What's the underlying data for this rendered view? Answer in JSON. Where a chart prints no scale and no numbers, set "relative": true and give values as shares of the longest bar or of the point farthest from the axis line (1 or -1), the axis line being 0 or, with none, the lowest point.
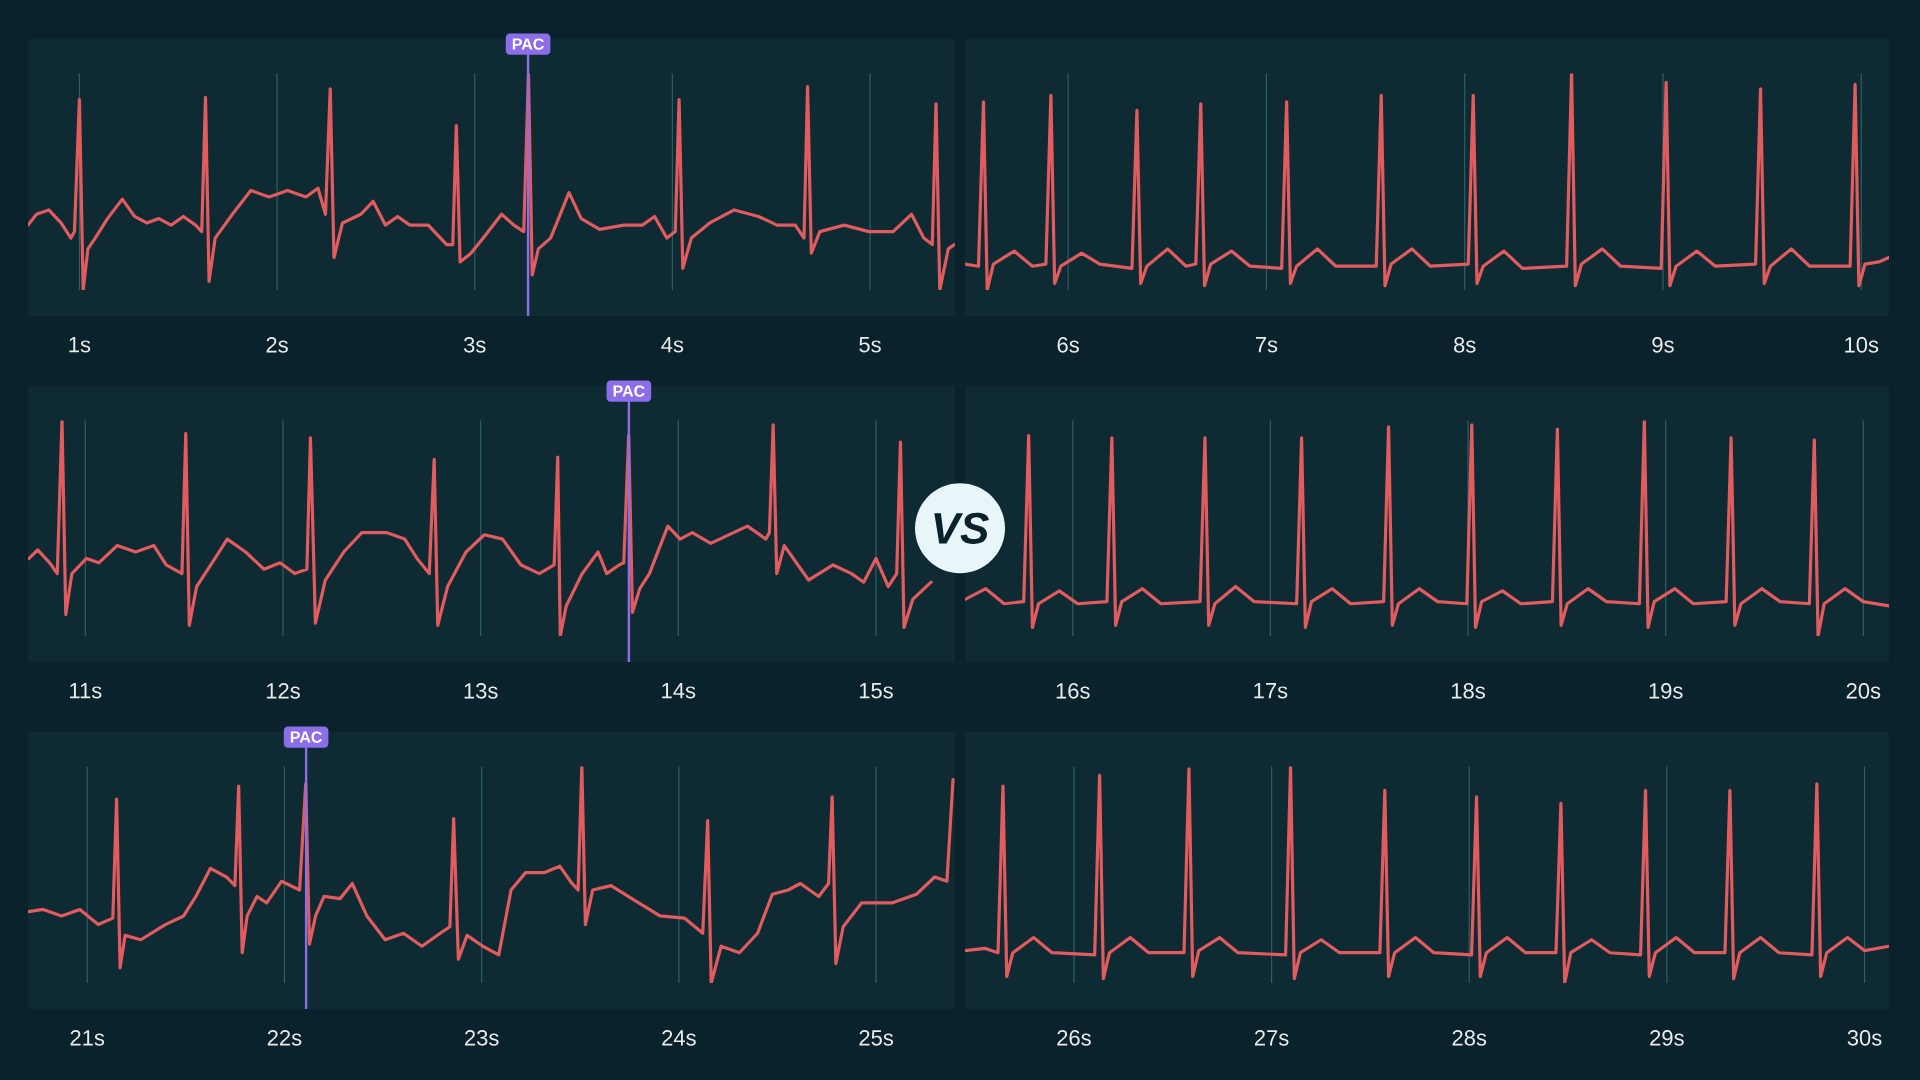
{
  "chart_data": [
    {
      "type": "line",
      "relative": true,
      "color": "#e25b5e",
      "grid": "x",
      "xlim": [
        0.74,
        5.43
      ],
      "xticks": [
        {
          "value": 1,
          "label": "1s"
        },
        {
          "value": 2,
          "label": "2s"
        },
        {
          "value": 3,
          "label": "3s"
        },
        {
          "value": 4,
          "label": "4s"
        },
        {
          "value": 5,
          "label": "5s"
        }
      ],
      "ref_lines": [
        {
          "axis": "x",
          "value": 3.27,
          "label": "PAC",
          "color": "#8b6ee8"
        }
      ],
      "x": [
        0.74,
        0.783,
        0.845,
        0.907,
        0.957,
        0.975,
        1.0,
        1.019,
        1.043,
        1.08,
        1.142,
        1.217,
        1.279,
        1.341,
        1.402,
        1.464,
        1.526,
        1.588,
        1.619,
        1.638,
        1.656,
        1.687,
        1.774,
        1.867,
        1.96,
        2.053,
        2.146,
        2.207,
        2.245,
        2.269,
        2.288,
        2.331,
        2.424,
        2.486,
        2.548,
        2.61,
        2.672,
        2.765,
        2.858,
        2.889,
        2.907,
        2.926,
        2.981,
        3.043,
        3.136,
        3.198,
        3.248,
        3.272,
        3.291,
        3.322,
        3.384,
        3.477,
        3.539,
        3.632,
        3.755,
        3.848,
        3.91,
        3.972,
        4.015,
        4.034,
        4.053,
        4.096,
        4.189,
        4.313,
        4.436,
        4.529,
        4.622,
        4.666,
        4.684,
        4.703,
        4.746,
        4.87,
        4.994,
        5.117,
        5.21,
        5.272,
        5.315,
        5.334,
        5.353,
        5.396,
        5.427
      ],
      "values": [
        0.3,
        0.35,
        0.37,
        0.31,
        0.24,
        0.27,
        0.88,
        0,
        0.19,
        0.24,
        0.33,
        0.42,
        0.34,
        0.31,
        0.33,
        0.3,
        0.34,
        0.3,
        0.27,
        0.89,
        0.04,
        0.24,
        0.35,
        0.46,
        0.43,
        0.46,
        0.43,
        0.47,
        0.35,
        0.93,
        0.15,
        0.31,
        0.35,
        0.41,
        0.3,
        0.34,
        0.3,
        0.3,
        0.21,
        0.21,
        0.76,
        0.13,
        0.17,
        0.24,
        0.35,
        0.3,
        0.27,
        1.0,
        0.07,
        0.19,
        0.24,
        0.45,
        0.33,
        0.28,
        0.3,
        0.3,
        0.34,
        0.24,
        0.27,
        0.88,
        0.1,
        0.24,
        0.31,
        0.37,
        0.34,
        0.3,
        0.3,
        0.24,
        0.94,
        0.17,
        0.27,
        0.3,
        0.27,
        0.27,
        0.35,
        0.24,
        0.21,
        0.86,
        0,
        0.19,
        0.21
      ]
    },
    {
      "type": "line",
      "relative": true,
      "color": "#e25b5e",
      "grid": "x",
      "xlim": [
        5.48,
        10.14
      ],
      "xticks": [
        {
          "value": 6,
          "label": "6s"
        },
        {
          "value": 7,
          "label": "7s"
        },
        {
          "value": 8,
          "label": "8s"
        },
        {
          "value": 9,
          "label": "9s"
        },
        {
          "value": 10,
          "label": "10s"
        }
      ],
      "x": [
        5.48,
        5.548,
        5.573,
        5.592,
        5.623,
        5.728,
        5.82,
        5.888,
        5.913,
        5.932,
        5.963,
        6.068,
        6.16,
        6.322,
        6.347,
        6.366,
        6.397,
        6.502,
        6.595,
        6.644,
        6.669,
        6.688,
        6.719,
        6.824,
        6.917,
        7.077,
        7.102,
        7.121,
        7.152,
        7.257,
        7.35,
        7.554,
        7.579,
        7.598,
        7.629,
        7.734,
        7.827,
        8.018,
        8.043,
        8.062,
        8.093,
        8.198,
        8.291,
        8.514,
        8.539,
        8.558,
        8.589,
        8.694,
        8.787,
        8.991,
        9.016,
        9.035,
        9.066,
        9.171,
        9.264,
        9.467,
        9.492,
        9.511,
        9.542,
        9.647,
        9.74,
        9.944,
        9.969,
        9.988,
        10.019,
        10.09,
        10.14
      ],
      "values": [
        0.12,
        0.11,
        0.87,
        0.0,
        0.12,
        0.18,
        0.11,
        0.12,
        0.9,
        0.03,
        0.11,
        0.17,
        0.12,
        0.1,
        0.83,
        0.03,
        0.11,
        0.19,
        0.11,
        0.12,
        0.86,
        0.02,
        0.12,
        0.18,
        0.11,
        0.1,
        0.87,
        0.03,
        0.11,
        0.19,
        0.11,
        0.11,
        0.9,
        0.02,
        0.12,
        0.19,
        0.11,
        0.12,
        0.9,
        0.03,
        0.11,
        0.18,
        0.1,
        0.11,
        1.0,
        0.02,
        0.12,
        0.19,
        0.11,
        0.1,
        0.96,
        0.02,
        0.11,
        0.18,
        0.11,
        0.12,
        0.93,
        0.03,
        0.11,
        0.19,
        0.11,
        0.11,
        0.95,
        0.02,
        0.12,
        0.13,
        0.15
      ]
    },
    {
      "type": "line",
      "relative": true,
      "color": "#e25b5e",
      "grid": "x",
      "xlim": [
        10.71,
        15.4
      ],
      "xticks": [
        {
          "value": 11,
          "label": "11s"
        },
        {
          "value": 12,
          "label": "12s"
        },
        {
          "value": 13,
          "label": "13s"
        },
        {
          "value": 14,
          "label": "14s"
        },
        {
          "value": 15,
          "label": "15s"
        }
      ],
      "ref_lines": [
        {
          "axis": "x",
          "value": 13.75,
          "label": "PAC",
          "color": "#8b6ee8"
        }
      ],
      "x": [
        10.715,
        10.759,
        10.82,
        10.858,
        10.882,
        10.901,
        10.932,
        11.006,
        11.068,
        11.161,
        11.254,
        11.347,
        11.409,
        11.489,
        11.508,
        11.526,
        11.563,
        11.656,
        11.718,
        11.811,
        11.904,
        11.985,
        12.059,
        12.121,
        12.139,
        12.164,
        12.214,
        12.307,
        12.399,
        12.523,
        12.616,
        12.678,
        12.74,
        12.765,
        12.783,
        12.833,
        12.926,
        13.019,
        13.111,
        13.204,
        13.297,
        13.372,
        13.39,
        13.403,
        13.433,
        13.514,
        13.594,
        13.638,
        13.7,
        13.724,
        13.749,
        13.768,
        13.805,
        13.854,
        13.947,
        14.009,
        14.071,
        14.164,
        14.257,
        14.35,
        14.443,
        14.461,
        14.48,
        14.498,
        14.536,
        14.659,
        14.783,
        14.876,
        14.938,
        15.0,
        15.062,
        15.105,
        15.124,
        15.142,
        15.186,
        15.279
      ],
      "values": [
        0.36,
        0.4,
        0.34,
        0.29,
        1.0,
        0.1,
        0.29,
        0.36,
        0.34,
        0.42,
        0.39,
        0.42,
        0.33,
        0.29,
        0.94,
        0.05,
        0.23,
        0.36,
        0.45,
        0.39,
        0.31,
        0.34,
        0.29,
        0.31,
        0.92,
        0.06,
        0.26,
        0.39,
        0.48,
        0.48,
        0.45,
        0.36,
        0.29,
        0.82,
        0.05,
        0.23,
        0.39,
        0.47,
        0.45,
        0.33,
        0.29,
        0.33,
        0.83,
        0,
        0.14,
        0.29,
        0.39,
        0.29,
        0.33,
        0.34,
        0.93,
        0.11,
        0.22,
        0.29,
        0.51,
        0.45,
        0.48,
        0.43,
        0.47,
        0.51,
        0.45,
        0.48,
        0.98,
        0.29,
        0.42,
        0.26,
        0.33,
        0.29,
        0.25,
        0.36,
        0.23,
        0.29,
        0.9,
        0.04,
        0.17,
        0.25
      ]
    },
    {
      "type": "line",
      "relative": true,
      "color": "#e25b5e",
      "grid": "x",
      "xlim": [
        15.455,
        20.13
      ],
      "xticks": [
        {
          "value": 16,
          "label": "16s"
        },
        {
          "value": 17,
          "label": "17s"
        },
        {
          "value": 18,
          "label": "18s"
        },
        {
          "value": 19,
          "label": "19s"
        },
        {
          "value": 20,
          "label": "20s"
        }
      ],
      "annotations": [
        "VS"
      ],
      "x": [
        15.455,
        15.56,
        15.653,
        15.752,
        15.777,
        15.796,
        15.827,
        15.932,
        16.025,
        16.173,
        16.198,
        16.217,
        16.248,
        16.353,
        16.446,
        16.644,
        16.669,
        16.688,
        16.719,
        16.824,
        16.917,
        17.133,
        17.158,
        17.177,
        17.208,
        17.313,
        17.406,
        17.573,
        17.598,
        17.617,
        17.648,
        17.753,
        17.846,
        17.994,
        18.019,
        18.038,
        18.069,
        18.174,
        18.267,
        18.427,
        18.452,
        18.471,
        18.502,
        18.607,
        18.7,
        18.867,
        18.892,
        18.911,
        18.942,
        19.047,
        19.14,
        19.306,
        19.331,
        19.35,
        19.381,
        19.486,
        19.579,
        19.727,
        19.752,
        19.771,
        19.802,
        19.907,
        20.0,
        20.13
      ],
      "values": [
        0.17,
        0.22,
        0.15,
        0.16,
        0.93,
        0.04,
        0.15,
        0.21,
        0.15,
        0.16,
        0.92,
        0.05,
        0.16,
        0.22,
        0.15,
        0.16,
        0.92,
        0.05,
        0.15,
        0.23,
        0.16,
        0.15,
        0.92,
        0.04,
        0.16,
        0.22,
        0.15,
        0.16,
        0.97,
        0.05,
        0.15,
        0.22,
        0.16,
        0.15,
        0.98,
        0.04,
        0.16,
        0.21,
        0.15,
        0.16,
        0.96,
        0.05,
        0.15,
        0.22,
        0.16,
        0.15,
        1.0,
        0.04,
        0.16,
        0.22,
        0.15,
        0.16,
        0.92,
        0.05,
        0.15,
        0.22,
        0.16,
        0.15,
        0.91,
        0.0,
        0.15,
        0.22,
        0.16,
        0.14
      ]
    },
    {
      "type": "line",
      "relative": true,
      "color": "#e25b5e",
      "grid": "x",
      "xlim": [
        20.7,
        25.4
      ],
      "xticks": [
        {
          "value": 21,
          "label": "21s"
        },
        {
          "value": 22,
          "label": "22s"
        },
        {
          "value": 23,
          "label": "23s"
        },
        {
          "value": 24,
          "label": "24s"
        },
        {
          "value": 25,
          "label": "25s"
        }
      ],
      "ref_lines": [
        {
          "axis": "x",
          "value": 22.11,
          "label": "PAC",
          "color": "#8b6ee8"
        }
      ],
      "x": [
        20.703,
        20.777,
        20.87,
        20.963,
        21.056,
        21.13,
        21.149,
        21.167,
        21.192,
        21.272,
        21.396,
        21.489,
        21.551,
        21.625,
        21.706,
        21.749,
        21.768,
        21.786,
        21.811,
        21.861,
        21.91,
        21.985,
        22.077,
        22.108,
        22.127,
        22.158,
        22.201,
        22.282,
        22.344,
        22.418,
        22.511,
        22.604,
        22.697,
        22.79,
        22.839,
        22.858,
        22.882,
        22.926,
        23.006,
        23.087,
        23.149,
        23.223,
        23.316,
        23.396,
        23.458,
        23.489,
        23.508,
        23.526,
        23.563,
        23.656,
        23.78,
        23.904,
        24.028,
        24.121,
        24.146,
        24.164,
        24.214,
        24.307,
        24.399,
        24.474,
        24.554,
        24.616,
        24.709,
        24.759,
        24.777,
        24.796,
        24.833,
        24.926,
        25.08,
        25.204,
        25.297,
        25.359,
        25.39
      ],
      "values": [
        0.33,
        0.34,
        0.31,
        0.34,
        0.27,
        0.3,
        0.85,
        0.07,
        0.22,
        0.2,
        0.27,
        0.31,
        0.4,
        0.53,
        0.49,
        0.45,
        0.91,
        0.14,
        0.31,
        0.4,
        0.37,
        0.47,
        0.43,
        0.92,
        0.18,
        0.31,
        0.4,
        0.39,
        0.46,
        0.31,
        0.2,
        0.23,
        0.17,
        0.23,
        0.26,
        0.76,
        0.11,
        0.22,
        0.17,
        0.13,
        0.43,
        0.51,
        0.51,
        0.54,
        0.46,
        0.43,
        1.0,
        0.27,
        0.43,
        0.45,
        0.38,
        0.31,
        0.3,
        0.23,
        0.75,
        0,
        0.17,
        0.14,
        0.23,
        0.41,
        0.43,
        0.46,
        0.4,
        0.46,
        0.86,
        0.09,
        0.26,
        0.37,
        0.37,
        0.41,
        0.49,
        0.47,
        0.94
      ]
    },
    {
      "type": "line",
      "relative": true,
      "color": "#e25b5e",
      "grid": "x",
      "xlim": [
        25.449,
        30.124
      ],
      "xticks": [
        {
          "value": 26,
          "label": "26s"
        },
        {
          "value": 27,
          "label": "27s"
        },
        {
          "value": 28,
          "label": "28s"
        },
        {
          "value": 29,
          "label": "29s"
        },
        {
          "value": 30,
          "label": "30s"
        }
      ],
      "x": [
        25.449,
        25.55,
        25.616,
        25.641,
        25.66,
        25.691,
        25.796,
        25.889,
        26.105,
        26.13,
        26.149,
        26.18,
        26.285,
        26.378,
        26.557,
        26.582,
        26.601,
        26.632,
        26.737,
        26.83,
        27.071,
        27.096,
        27.115,
        27.146,
        27.251,
        27.344,
        27.548,
        27.573,
        27.592,
        27.623,
        27.728,
        27.821,
        28.012,
        28.037,
        28.056,
        28.087,
        28.192,
        28.285,
        28.439,
        28.464,
        28.483,
        28.514,
        28.619,
        28.712,
        28.867,
        28.892,
        28.911,
        28.942,
        29.047,
        29.14,
        29.294,
        29.319,
        29.338,
        29.369,
        29.474,
        29.567,
        29.734,
        29.759,
        29.778,
        29.809,
        29.914,
        30.0,
        30.124
      ],
      "values": [
        0.15,
        0.16,
        0.14,
        0.91,
        0.03,
        0.14,
        0.21,
        0.14,
        0.13,
        0.96,
        0.02,
        0.14,
        0.21,
        0.14,
        0.14,
        0.99,
        0.03,
        0.15,
        0.21,
        0.14,
        0.13,
        1.0,
        0.02,
        0.14,
        0.2,
        0.14,
        0.14,
        0.89,
        0.03,
        0.14,
        0.21,
        0.14,
        0.13,
        0.86,
        0.03,
        0.14,
        0.21,
        0.14,
        0.14,
        0.83,
        0.0,
        0.14,
        0.2,
        0.14,
        0.13,
        0.89,
        0.03,
        0.14,
        0.21,
        0.14,
        0.14,
        0.89,
        0.02,
        0.14,
        0.21,
        0.14,
        0.13,
        0.92,
        0.03,
        0.14,
        0.21,
        0.15,
        0.17
      ]
    }
  ]
}
